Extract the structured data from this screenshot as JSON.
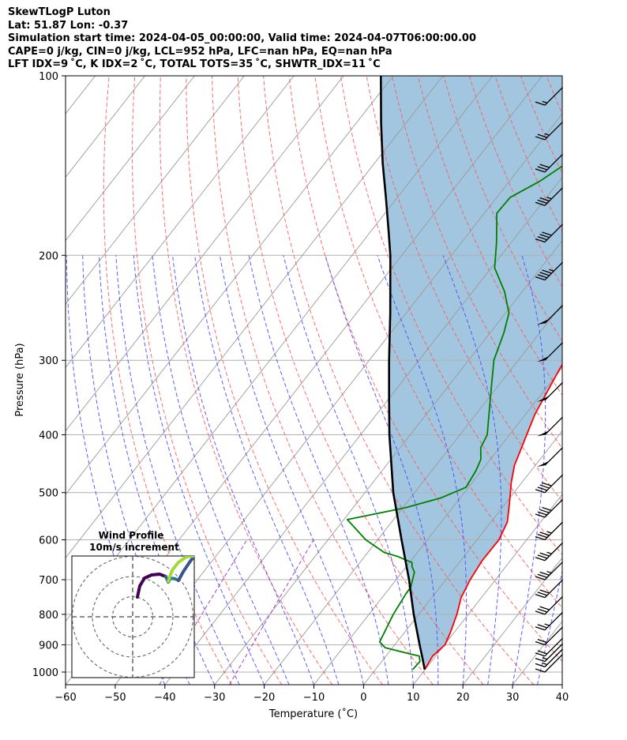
{
  "header": {
    "title": "SkewTLogP Luton",
    "location": "Lat: 51.87   Lon: -0.37",
    "times": "Simulation start time: 2024-04-05_00:00:00, Valid time: 2024-04-07T06:00:00.00",
    "convective": "CAPE=0 j/kg, CIN=0 j/kg, LCL=952 hPa, LFC=nan hPa, EQ=nan hPa",
    "indices": "LFT IDX=9$^\\circ$C, K IDX=2$^\\circ$C, TOTAL TOTS=35$^\\circ$C, SHWTR_IDX=11$^\\circ$C",
    "indices_display": "LFT IDX=9 ˚C, K IDX=2 ˚C, TOTAL TOTS=35 ˚C, SHWTR_IDX=11 ˚C"
  },
  "chart_data": {
    "type": "line",
    "subtype": "skew-T log-P",
    "xlabel": "Temperature ($^\\circ$C)",
    "xlabel_display": "Temperature (˚C)",
    "ylabel": "Pressure (hPa)",
    "xlim": [
      -60,
      40
    ],
    "ylim": [
      1050,
      100
    ],
    "y_scale": "log",
    "x_ticks": [
      -60,
      -50,
      -40,
      -30,
      -20,
      -10,
      0,
      10,
      20,
      30,
      40
    ],
    "y_ticks": [
      100,
      200,
      300,
      400,
      500,
      600,
      700,
      800,
      900,
      1000
    ],
    "grid": true,
    "series": [
      {
        "role": "temperature",
        "color": "#ff0000",
        "points": [
          [
            9.9,
            990
          ],
          [
            9.4,
            940
          ],
          [
            10.1,
            900
          ],
          [
            9.3,
            860
          ],
          [
            7.7,
            800
          ],
          [
            5.9,
            750
          ],
          [
            4.9,
            700
          ],
          [
            4.3,
            650
          ],
          [
            4.4,
            600
          ],
          [
            3.3,
            560
          ],
          [
            0.7,
            520
          ],
          [
            -2.2,
            480
          ],
          [
            -4.2,
            450
          ],
          [
            -8.1,
            370
          ],
          [
            -10.3,
            310
          ],
          [
            -11.3,
            270
          ],
          [
            -11.4,
            250
          ],
          [
            -10.4,
            230
          ],
          [
            -8.6,
            210
          ],
          [
            -4.4,
            180
          ],
          [
            -3.6,
            160
          ],
          [
            -4.0,
            150
          ],
          [
            -5.1,
            140
          ],
          [
            -6.1,
            130
          ],
          [
            -5.9,
            120
          ],
          [
            -7.0,
            110
          ],
          [
            -8.5,
            100
          ]
        ]
      },
      {
        "role": "dewpoint",
        "color": "#008000",
        "points": [
          [
            7.5,
            990
          ],
          [
            7.7,
            960
          ],
          [
            6.7,
            940
          ],
          [
            3.9,
            930
          ],
          [
            -1.5,
            910
          ],
          [
            -3.5,
            890
          ],
          [
            -5.1,
            800
          ],
          [
            -5.8,
            740
          ],
          [
            -5.9,
            720
          ],
          [
            -7.5,
            680
          ],
          [
            -8.9,
            665
          ],
          [
            -9.5,
            655
          ],
          [
            -13.3,
            640
          ],
          [
            -16.7,
            630
          ],
          [
            -22.4,
            600
          ],
          [
            -29.3,
            555
          ],
          [
            -19.4,
            530
          ],
          [
            -13.8,
            510
          ],
          [
            -10.5,
            490
          ],
          [
            -11.1,
            460
          ],
          [
            -11.9,
            440
          ],
          [
            -13.8,
            420
          ],
          [
            -14.5,
            400
          ],
          [
            -20.4,
            340
          ],
          [
            -24.9,
            300
          ],
          [
            -27.2,
            270
          ],
          [
            -29.3,
            250
          ],
          [
            -33.6,
            230
          ],
          [
            -39.3,
            210
          ],
          [
            -43.0,
            190
          ],
          [
            -47.5,
            170
          ],
          [
            -47.3,
            160
          ],
          [
            -43.8,
            150
          ],
          [
            -41.3,
            140
          ],
          [
            -38.7,
            130
          ],
          [
            -37.1,
            120
          ],
          [
            -36.0,
            110
          ],
          [
            -35.1,
            100
          ]
        ]
      },
      {
        "role": "parcel",
        "color": "#000000",
        "points": [
          [
            9.9,
            990
          ],
          [
            7.8,
            950
          ],
          [
            5.0,
            900
          ],
          [
            -1.0,
            800
          ],
          [
            -7.4,
            700
          ],
          [
            -15.2,
            600
          ],
          [
            -24.3,
            500
          ],
          [
            -34.2,
            400
          ],
          [
            -39.7,
            350
          ],
          [
            -46.0,
            300
          ],
          [
            -53.2,
            250
          ],
          [
            -62.3,
            200
          ],
          [
            -67.0,
            180
          ],
          [
            -72.3,
            160
          ],
          [
            -78.4,
            140
          ],
          [
            -85.0,
            120
          ],
          [
            -92.5,
            100
          ]
        ]
      }
    ],
    "cape_fill": {
      "color": "#a2c6df"
    },
    "wind_barbs": [
      {
        "p": 1000,
        "speed_kt": 10
      },
      {
        "p": 980,
        "speed_kt": 15
      },
      {
        "p": 960,
        "speed_kt": 15
      },
      {
        "p": 940,
        "speed_kt": 20
      },
      {
        "p": 900,
        "speed_kt": 20
      },
      {
        "p": 850,
        "speed_kt": 25
      },
      {
        "p": 800,
        "speed_kt": 30
      },
      {
        "p": 750,
        "speed_kt": 30
      },
      {
        "p": 700,
        "speed_kt": 35
      },
      {
        "p": 650,
        "speed_kt": 35
      },
      {
        "p": 600,
        "speed_kt": 35
      },
      {
        "p": 550,
        "speed_kt": 40
      },
      {
        "p": 500,
        "speed_kt": 40
      },
      {
        "p": 450,
        "speed_kt": 50
      },
      {
        "p": 400,
        "speed_kt": 50
      },
      {
        "p": 350,
        "speed_kt": 50
      },
      {
        "p": 300,
        "speed_kt": 50
      },
      {
        "p": 260,
        "speed_kt": 50
      },
      {
        "p": 220,
        "speed_kt": 45
      },
      {
        "p": 190,
        "speed_kt": 40
      },
      {
        "p": 165,
        "speed_kt": 35
      },
      {
        "p": 145,
        "speed_kt": 30
      },
      {
        "p": 128,
        "speed_kt": 25
      },
      {
        "p": 112,
        "speed_kt": 15
      }
    ],
    "hodograph": {
      "title": "Wind Profile",
      "subtitle": "10m/s increment",
      "rings": [
        10,
        20,
        30
      ]
    }
  }
}
